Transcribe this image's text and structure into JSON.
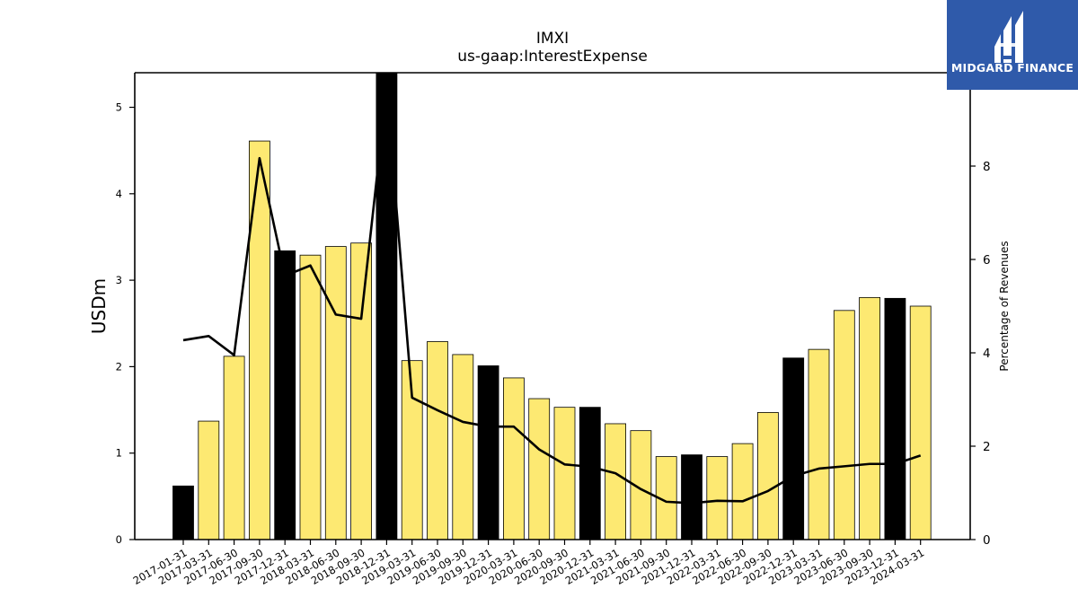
{
  "header": {
    "title": "IMXI",
    "subtitle": "us-gaap:InterestExpense"
  },
  "logo": {
    "text": "MIDGARD FINANCE",
    "bg": "#2f5aaa"
  },
  "colors": {
    "bar_regular": "#fde972",
    "bar_highlight": "#000000",
    "line": "#000000"
  },
  "chart_data": {
    "type": "bar",
    "title": "IMXI",
    "subtitle": "us-gaap:InterestExpense",
    "ylabel": "USDm",
    "y2label": "Percentage of Revenues",
    "ylim": [
      0,
      5.4
    ],
    "y2lim": [
      0,
      10.0
    ],
    "yticks": [
      0,
      1,
      2,
      3,
      4,
      5
    ],
    "y2ticks": [
      0,
      2,
      4,
      6,
      8
    ],
    "categories": [
      "2017-01-31",
      "2017-03-31",
      "2017-06-30",
      "2017-09-30",
      "2017-12-31",
      "2018-03-31",
      "2018-06-30",
      "2018-09-30",
      "2018-12-31",
      "2019-03-31",
      "2019-06-30",
      "2019-09-30",
      "2019-12-31",
      "2020-03-31",
      "2020-06-30",
      "2020-09-30",
      "2020-12-31",
      "2021-03-31",
      "2021-06-30",
      "2021-09-30",
      "2021-12-31",
      "2022-03-31",
      "2022-06-30",
      "2022-09-30",
      "2022-12-31",
      "2023-03-31",
      "2023-06-30",
      "2023-09-30",
      "2023-12-31",
      "2024-03-31"
    ],
    "series": [
      {
        "type": "bar",
        "axis": "left",
        "values": [
          0.62,
          1.37,
          2.12,
          4.61,
          3.34,
          3.29,
          3.39,
          3.43,
          5.4,
          2.07,
          2.29,
          2.14,
          2.01,
          1.87,
          1.63,
          1.53,
          1.53,
          1.34,
          1.26,
          0.96,
          0.98,
          0.96,
          1.11,
          1.47,
          2.1,
          2.2,
          2.65,
          2.8,
          2.79,
          2.7
        ],
        "highlight": [
          true,
          false,
          false,
          false,
          true,
          false,
          false,
          false,
          true,
          false,
          false,
          false,
          true,
          false,
          false,
          false,
          true,
          false,
          false,
          false,
          true,
          false,
          false,
          false,
          true,
          false,
          false,
          false,
          true,
          false
        ]
      },
      {
        "type": "line",
        "axis": "right",
        "values": [
          4.27,
          4.36,
          3.95,
          8.17,
          5.65,
          5.87,
          4.82,
          4.73,
          9.65,
          3.04,
          2.77,
          2.52,
          2.42,
          2.42,
          1.93,
          1.61,
          1.56,
          1.42,
          1.08,
          0.81,
          0.78,
          0.83,
          0.82,
          1.04,
          1.36,
          1.52,
          1.57,
          1.62,
          1.62,
          1.8
        ]
      }
    ],
    "grid": false,
    "legend": "none"
  }
}
